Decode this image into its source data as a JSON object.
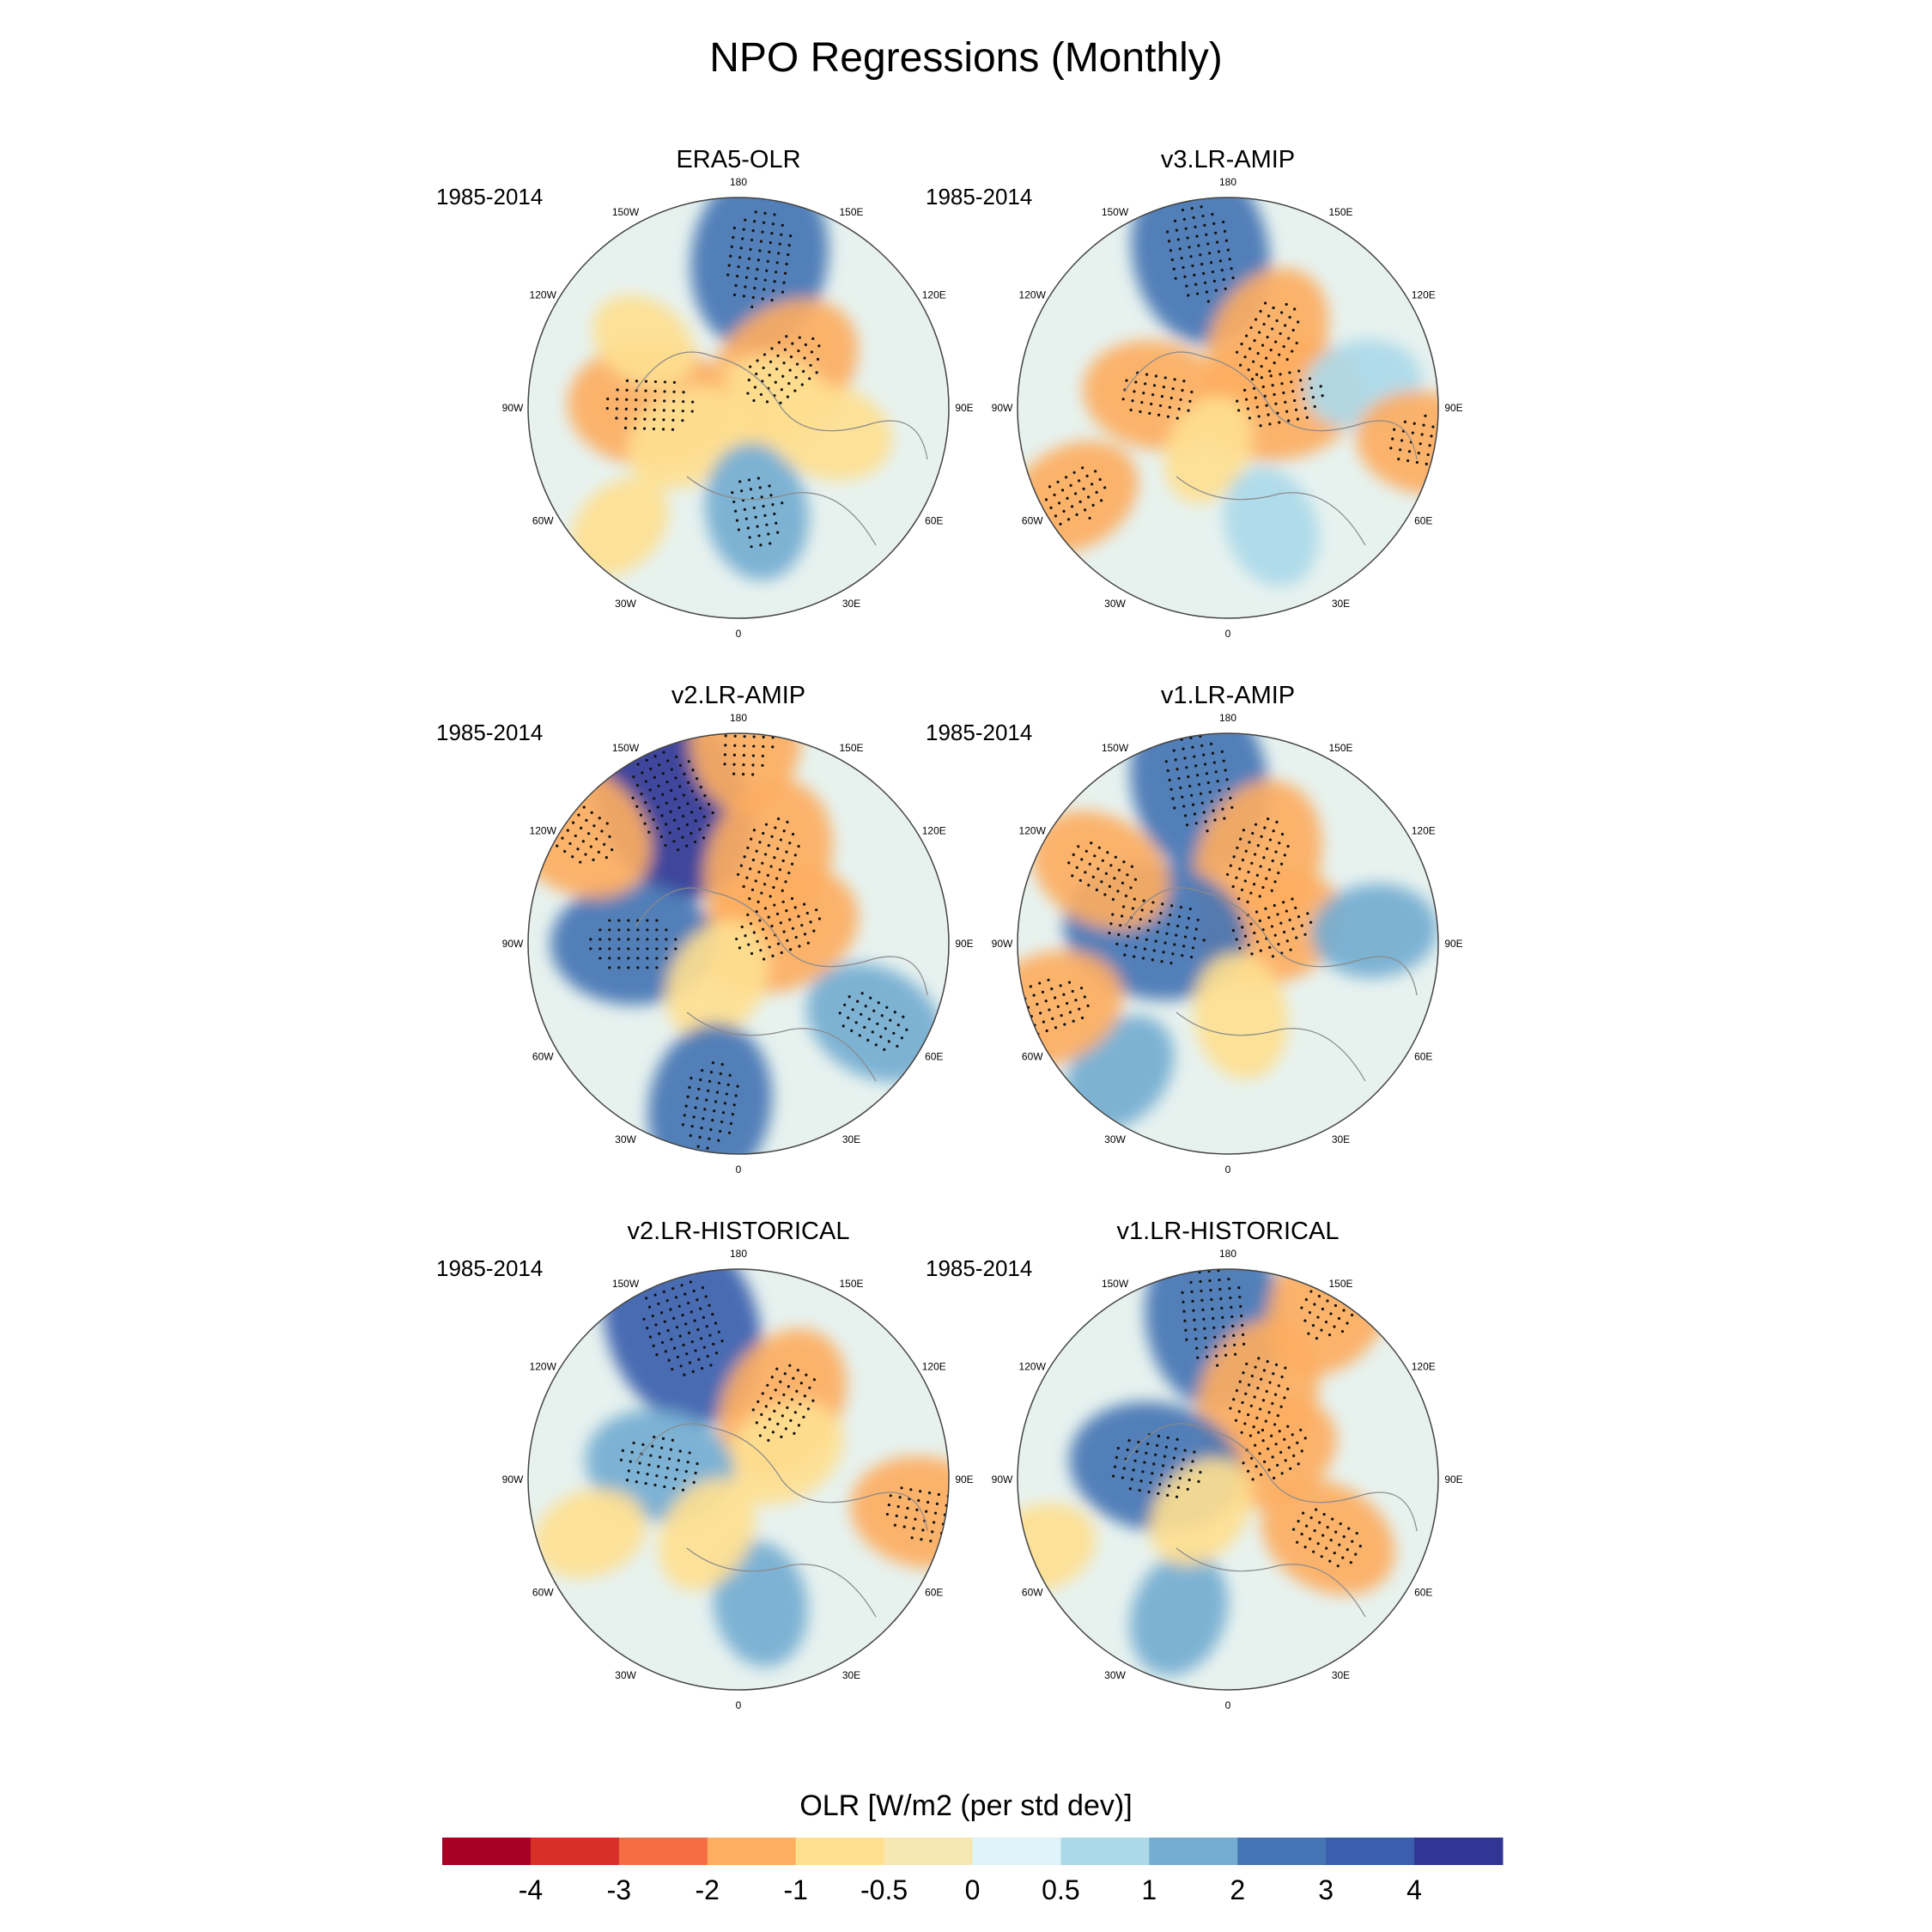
{
  "title": "NPO Regressions (Monthly)",
  "panels": [
    {
      "title": "ERA5-OLR",
      "period": "1985-2014",
      "anomalies": [
        {
          "lon": 172,
          "r": 0.72,
          "v": 2.5
        },
        {
          "lon": 130,
          "r": 0.28,
          "v": -2
        },
        {
          "lon": 100,
          "r": 0.12,
          "v": -1
        },
        {
          "lon": -92,
          "r": 0.42,
          "v": -2
        },
        {
          "lon": -60,
          "r": 0.28,
          "v": -1
        },
        {
          "lon": 10,
          "r": 0.5,
          "v": 1.3
        },
        {
          "lon": 75,
          "r": 0.45,
          "v": -1
        },
        {
          "lon": -125,
          "r": 0.55,
          "v": -0.6
        },
        {
          "lon": -45,
          "r": 0.8,
          "v": -0.6
        }
      ]
    },
    {
      "title": "v3.LR-AMIP",
      "period": "1985-2014",
      "anomalies": [
        {
          "lon": -170,
          "r": 0.75,
          "v": 2.5
        },
        {
          "lon": 150,
          "r": 0.38,
          "v": -1.6
        },
        {
          "lon": 100,
          "r": 0.25,
          "v": -2
        },
        {
          "lon": -100,
          "r": 0.35,
          "v": -1.5
        },
        {
          "lon": -25,
          "r": 0.22,
          "v": -0.6
        },
        {
          "lon": 20,
          "r": 0.6,
          "v": 0.9
        },
        {
          "lon": 100,
          "r": 0.65,
          "v": 0.8
        },
        {
          "lon": -60,
          "r": 0.85,
          "v": -1.3
        },
        {
          "lon": 80,
          "r": 0.95,
          "v": -1.3
        }
      ]
    },
    {
      "title": "v2.LR-AMIP",
      "period": "1985-2014",
      "anomalies": [
        {
          "lon": -155,
          "r": 0.75,
          "v": 4
        },
        {
          "lon": 160,
          "r": 0.42,
          "v": -2
        },
        {
          "lon": 110,
          "r": 0.2,
          "v": -2
        },
        {
          "lon": -90,
          "r": 0.5,
          "v": 2
        },
        {
          "lon": -30,
          "r": 0.2,
          "v": -1
        },
        {
          "lon": -10,
          "r": 0.78,
          "v": 2
        },
        {
          "lon": 60,
          "r": 0.75,
          "v": 1.5
        },
        {
          "lon": 178,
          "r": 0.98,
          "v": -1.6
        },
        {
          "lon": -125,
          "r": 0.95,
          "v": -2
        }
      ]
    },
    {
      "title": "v1.LR-AMIP",
      "period": "1985-2014",
      "anomalies": [
        {
          "lon": -170,
          "r": 0.78,
          "v": 2.5
        },
        {
          "lon": 160,
          "r": 0.42,
          "v": -2
        },
        {
          "lon": 110,
          "r": 0.22,
          "v": -1.6
        },
        {
          "lon": -100,
          "r": 0.35,
          "v": 2.5
        },
        {
          "lon": 10,
          "r": 0.35,
          "v": -1
        },
        {
          "lon": -40,
          "r": 0.8,
          "v": 1
        },
        {
          "lon": -70,
          "r": 0.9,
          "v": -1.6
        },
        {
          "lon": 95,
          "r": 0.7,
          "v": 1
        },
        {
          "lon": -120,
          "r": 0.7,
          "v": -1.5
        }
      ]
    },
    {
      "title": "v2.LR-HISTORICAL",
      "period": "1985-2014",
      "anomalies": [
        {
          "lon": -160,
          "r": 0.78,
          "v": 3
        },
        {
          "lon": 150,
          "r": 0.42,
          "v": -1.8
        },
        {
          "lon": 120,
          "r": 0.25,
          "v": -1
        },
        {
          "lon": -100,
          "r": 0.38,
          "v": 1.6
        },
        {
          "lon": 10,
          "r": 0.6,
          "v": 1
        },
        {
          "lon": -30,
          "r": 0.3,
          "v": -0.8
        },
        {
          "lon": 80,
          "r": 0.9,
          "v": -1.6
        },
        {
          "lon": -70,
          "r": 0.75,
          "v": -0.7
        }
      ]
    },
    {
      "title": "v1.LR-HISTORICAL",
      "period": "1985-2014",
      "anomalies": [
        {
          "lon": -175,
          "r": 0.78,
          "v": 2.5
        },
        {
          "lon": 160,
          "r": 0.42,
          "v": -1.8
        },
        {
          "lon": 120,
          "r": 0.25,
          "v": -1.2
        },
        {
          "lon": -100,
          "r": 0.35,
          "v": 2.2
        },
        {
          "lon": 60,
          "r": 0.55,
          "v": -1.4
        },
        {
          "lon": -20,
          "r": 0.68,
          "v": 1
        },
        {
          "lon": -40,
          "r": 0.2,
          "v": -0.8
        },
        {
          "lon": 150,
          "r": 0.98,
          "v": -1.8
        },
        {
          "lon": -70,
          "r": 0.95,
          "v": -0.7
        }
      ]
    }
  ],
  "lon_labels": [
    "180",
    "150E",
    "120E",
    "90E",
    "60E",
    "30E",
    "0",
    "30W",
    "60W",
    "90W",
    "120W",
    "150W"
  ],
  "colorbar": {
    "title": "OLR [W/m2 (per std dev)]",
    "tick_labels": [
      "-4",
      "-3",
      "-2",
      "-1",
      "-0.5",
      "0",
      "0.5",
      "1",
      "2",
      "3",
      "4"
    ],
    "levels": [
      -4,
      -3,
      -2,
      -1,
      -0.5,
      0,
      0.5,
      1,
      2,
      3,
      4
    ],
    "colors": [
      "#a50026",
      "#d73027",
      "#f46d43",
      "#fdae61",
      "#fee090",
      "#f7e7b1",
      "#e0f3f8",
      "#abd9e9",
      "#74add1",
      "#4575b4",
      "#3a5fac",
      "#313695"
    ]
  }
}
